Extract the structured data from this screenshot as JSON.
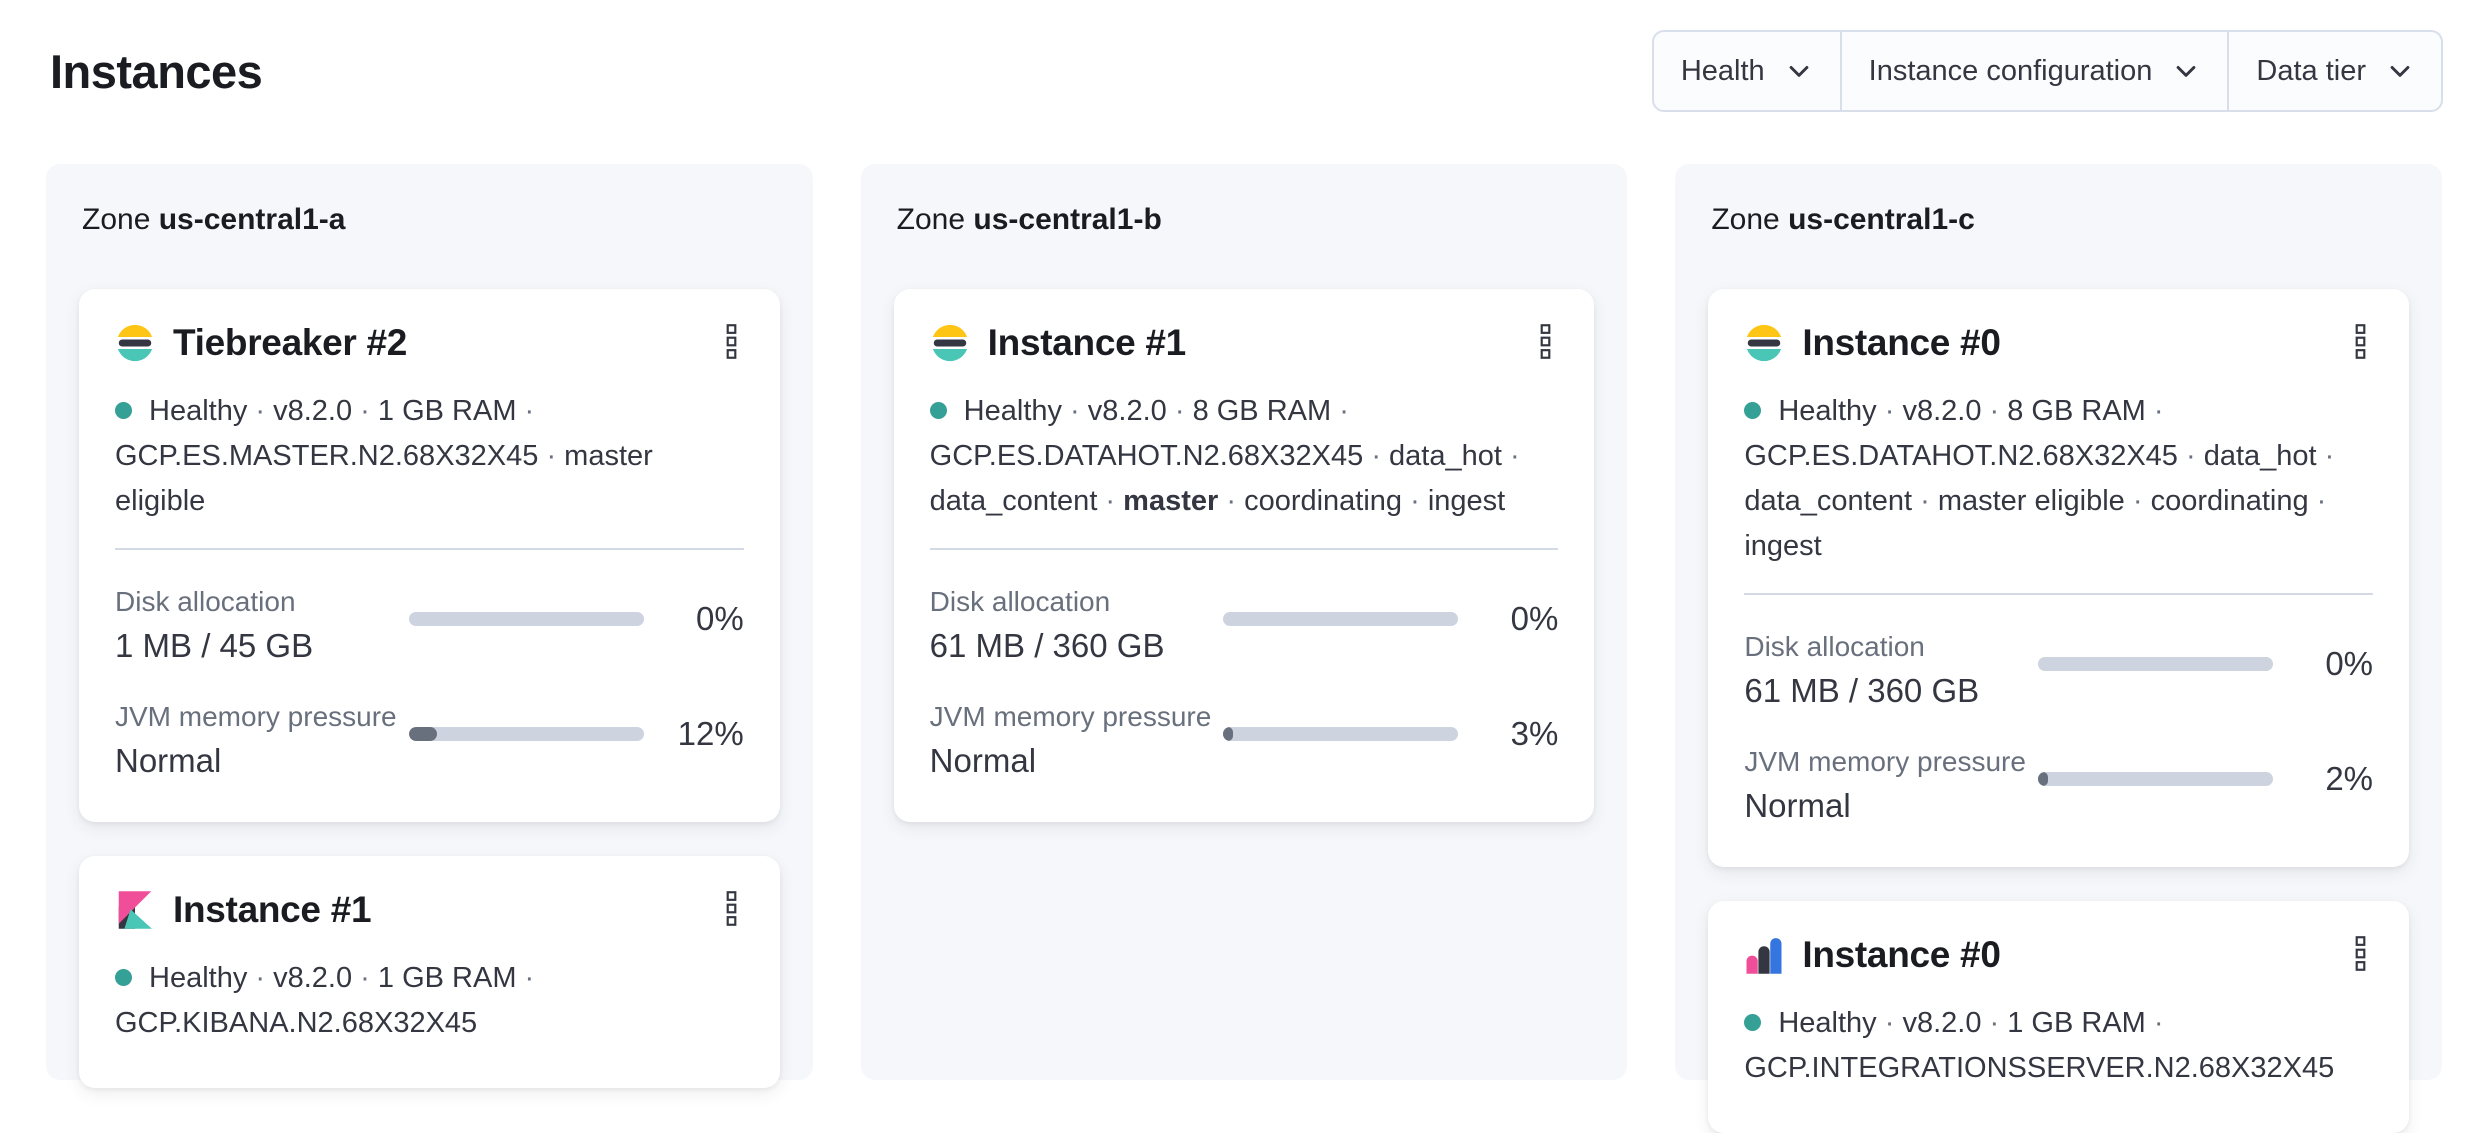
{
  "page": {
    "title": "Instances"
  },
  "filters": [
    {
      "label": "Health"
    },
    {
      "label": "Instance configuration"
    },
    {
      "label": "Data tier"
    }
  ],
  "zone_prefix": "Zone",
  "zones": [
    {
      "name": "us-central1-a",
      "cards": [
        {
          "logo": "elasticsearch",
          "title": "Tiebreaker #2",
          "health": "Healthy",
          "meta": [
            [
              {
                "t": "Healthy"
              },
              {
                "t": " · ",
                "s": 1
              },
              {
                "t": "v8.2.0"
              },
              {
                "t": " · ",
                "s": 1
              },
              {
                "t": "1 GB RAM"
              },
              {
                "t": " ·",
                "s": 1
              }
            ],
            [
              {
                "t": "GCP.ES.MASTER.N2.68X32X45"
              },
              {
                "t": " · ",
                "s": 1
              },
              {
                "t": "master eligible"
              }
            ]
          ],
          "metrics": [
            {
              "label": "Disk allocation",
              "value": "1 MB / 45 GB",
              "percent": "0%",
              "fill": 0
            },
            {
              "label": "JVM memory pressure",
              "value": "Normal",
              "percent": "12%",
              "fill": 12
            }
          ]
        },
        {
          "logo": "kibana",
          "title": "Instance #1",
          "health": "Healthy",
          "meta": [
            [
              {
                "t": "Healthy"
              },
              {
                "t": " · ",
                "s": 1
              },
              {
                "t": "v8.2.0"
              },
              {
                "t": " · ",
                "s": 1
              },
              {
                "t": "1 GB RAM"
              },
              {
                "t": " ·",
                "s": 1
              }
            ],
            [
              {
                "t": "GCP.KIBANA.N2.68X32X45"
              }
            ]
          ],
          "metrics": []
        }
      ]
    },
    {
      "name": "us-central1-b",
      "cards": [
        {
          "logo": "elasticsearch",
          "title": "Instance #1",
          "health": "Healthy",
          "meta": [
            [
              {
                "t": "Healthy"
              },
              {
                "t": " · ",
                "s": 1
              },
              {
                "t": "v8.2.0"
              },
              {
                "t": " · ",
                "s": 1
              },
              {
                "t": "8 GB RAM"
              },
              {
                "t": " ·",
                "s": 1
              }
            ],
            [
              {
                "t": "GCP.ES.DATAHOT.N2.68X32X45"
              },
              {
                "t": " · ",
                "s": 1
              },
              {
                "t": "data_hot"
              },
              {
                "t": " ·",
                "s": 1
              }
            ],
            [
              {
                "t": "data_content"
              },
              {
                "t": " · ",
                "s": 1
              },
              {
                "t": "master",
                "b": 1
              },
              {
                "t": " · ",
                "s": 1
              },
              {
                "t": "coordinating"
              },
              {
                "t": " · ",
                "s": 1
              },
              {
                "t": "ingest"
              }
            ]
          ],
          "metrics": [
            {
              "label": "Disk allocation",
              "value": "61 MB / 360 GB",
              "percent": "0%",
              "fill": 0
            },
            {
              "label": "JVM memory pressure",
              "value": "Normal",
              "percent": "3%",
              "fill": 3
            }
          ]
        }
      ]
    },
    {
      "name": "us-central1-c",
      "cards": [
        {
          "logo": "elasticsearch",
          "title": "Instance #0",
          "health": "Healthy",
          "meta": [
            [
              {
                "t": "Healthy"
              },
              {
                "t": " · ",
                "s": 1
              },
              {
                "t": "v8.2.0"
              },
              {
                "t": " · ",
                "s": 1
              },
              {
                "t": "8 GB RAM"
              },
              {
                "t": " ·",
                "s": 1
              }
            ],
            [
              {
                "t": "GCP.ES.DATAHOT.N2.68X32X45"
              },
              {
                "t": " · ",
                "s": 1
              },
              {
                "t": "data_hot"
              },
              {
                "t": " ·",
                "s": 1
              }
            ],
            [
              {
                "t": "data_content"
              },
              {
                "t": " · ",
                "s": 1
              },
              {
                "t": "master eligible"
              },
              {
                "t": " · ",
                "s": 1
              },
              {
                "t": "coordinating"
              },
              {
                "t": " · ",
                "s": 1
              },
              {
                "t": "ingest"
              }
            ]
          ],
          "metrics": [
            {
              "label": "Disk allocation",
              "value": "61 MB / 360 GB",
              "percent": "0%",
              "fill": 0
            },
            {
              "label": "JVM memory pressure",
              "value": "Normal",
              "percent": "2%",
              "fill": 2
            }
          ]
        },
        {
          "logo": "integrations-server",
          "title": "Instance #0",
          "health": "Healthy",
          "meta": [
            [
              {
                "t": "Healthy"
              },
              {
                "t": " · ",
                "s": 1
              },
              {
                "t": "v8.2.0"
              },
              {
                "t": " · ",
                "s": 1
              },
              {
                "t": "1 GB RAM"
              },
              {
                "t": " ·",
                "s": 1
              }
            ],
            [
              {
                "t": "GCP.INTEGRATIONSSERVER.N2.68X32X45"
              }
            ]
          ],
          "metrics": []
        }
      ]
    }
  ],
  "colors": {
    "panel_bg": "#F5F7FA",
    "card_bg": "#FFFFFF",
    "title_text": "#1A1C21",
    "body_text": "#343741",
    "subdued_text": "#69707D",
    "divider": "#D3DAE6",
    "filter_border": "#D9DFEA",
    "bar_track": "#CDD3DF",
    "bar_fill": "#69707D",
    "healthy_dot": "#35A095",
    "logo_yellow": "#FEC514",
    "logo_dark": "#343741",
    "logo_teal": "#49C6B6",
    "logo_pink": "#F04E98",
    "logo_blue": "#3575E0"
  }
}
